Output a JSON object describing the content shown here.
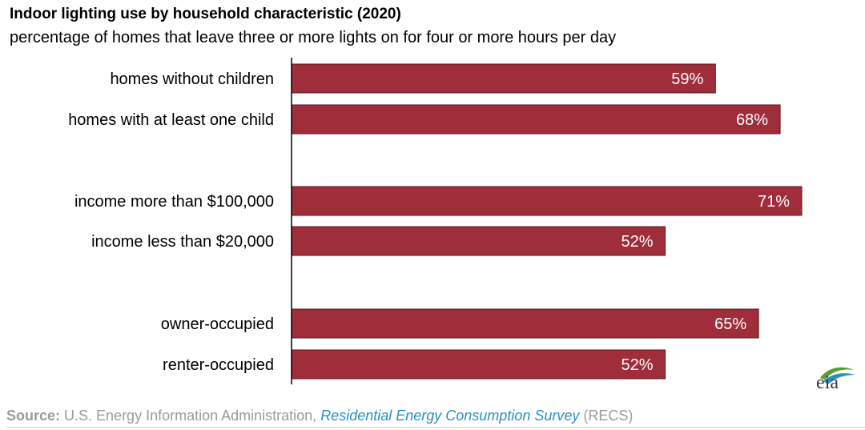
{
  "header": {
    "title": "Indoor lighting use by household characteristic (2020)",
    "subtitle": "percentage of homes that leave three or more lights on for four or more hours per day"
  },
  "chart_data": {
    "type": "bar",
    "orientation": "horizontal",
    "title": "Indoor lighting use by household characteristic (2020)",
    "subtitle": "percentage of homes that leave three or more lights on for four or more hours per day",
    "categories": [
      "homes without children",
      "homes with at least one child",
      "income more than $100,000",
      "income less than $20,000",
      "owner-occupied",
      "renter-occupied"
    ],
    "values": [
      59,
      68,
      71,
      52,
      65,
      52
    ],
    "value_labels": [
      "59%",
      "68%",
      "71%",
      "52%",
      "65%",
      "52%"
    ],
    "groups": [
      [
        0,
        1
      ],
      [
        2,
        3
      ],
      [
        4,
        5
      ]
    ],
    "xlim": [
      0,
      71
    ],
    "unit": "%",
    "grid": false,
    "legend": "none",
    "bar_color": "#a02d3a",
    "label_color": "#ffffff"
  },
  "source": {
    "prefix": "Source:",
    "agency": " U.S. Energy Information Administration, ",
    "survey": "Residential Energy Consumption Survey",
    "suffix": " (RECS)"
  },
  "logo": {
    "text": "eia",
    "icon": "eia-logo-icon",
    "colors": [
      "#5aa02c",
      "#2b8fc4"
    ]
  }
}
